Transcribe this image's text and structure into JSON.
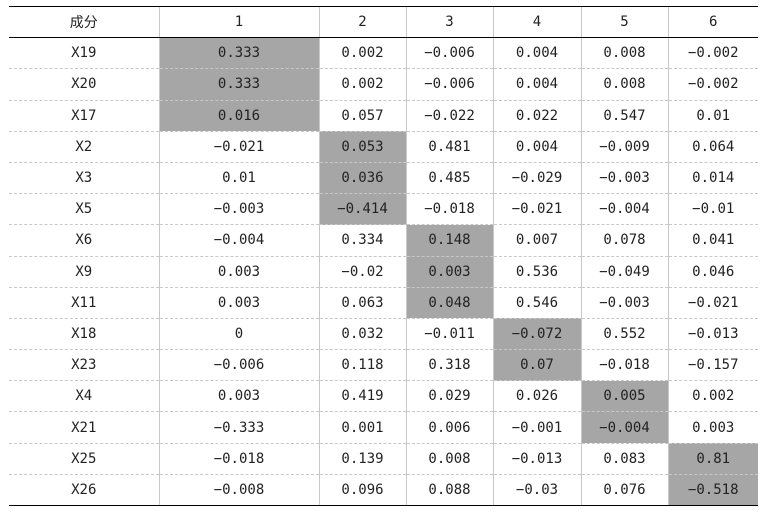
{
  "table": {
    "headers": [
      "成分",
      "1",
      "2",
      "3",
      "4",
      "5",
      "6"
    ],
    "highlight_color": "#a6a6a6",
    "rows": [
      {
        "label": "X19",
        "values": [
          "0.333",
          "0.002",
          "−0.006",
          "0.004",
          "0.008",
          "−0.002"
        ],
        "highlight": [
          0
        ]
      },
      {
        "label": "X20",
        "values": [
          "0.333",
          "0.002",
          "−0.006",
          "0.004",
          "0.008",
          "−0.002"
        ],
        "highlight": [
          0
        ]
      },
      {
        "label": "X17",
        "values": [
          "0.016",
          "0.057",
          "−0.022",
          "0.022",
          "0.547",
          "0.01"
        ],
        "highlight": [
          0
        ]
      },
      {
        "label": "X2",
        "values": [
          "−0.021",
          "0.053",
          "0.481",
          "0.004",
          "−0.009",
          "0.064"
        ],
        "highlight": [
          1
        ]
      },
      {
        "label": "X3",
        "values": [
          "0.01",
          "0.036",
          "0.485",
          "−0.029",
          "−0.003",
          "0.014"
        ],
        "highlight": [
          1
        ]
      },
      {
        "label": "X5",
        "values": [
          "−0.003",
          "−0.414",
          "−0.018",
          "−0.021",
          "−0.004",
          "−0.01"
        ],
        "highlight": [
          1
        ]
      },
      {
        "label": "X6",
        "values": [
          "−0.004",
          "0.334",
          "0.148",
          "0.007",
          "0.078",
          "0.041"
        ],
        "highlight": [
          2
        ]
      },
      {
        "label": "X9",
        "values": [
          "0.003",
          "−0.02",
          "0.003",
          "0.536",
          "−0.049",
          "0.046"
        ],
        "highlight": [
          2
        ]
      },
      {
        "label": "X11",
        "values": [
          "0.003",
          "0.063",
          "0.048",
          "0.546",
          "−0.003",
          "−0.021"
        ],
        "highlight": [
          2
        ]
      },
      {
        "label": "X18",
        "values": [
          "0",
          "0.032",
          "−0.011",
          "−0.072",
          "0.552",
          "−0.013"
        ],
        "highlight": [
          3
        ]
      },
      {
        "label": "X23",
        "values": [
          "−0.006",
          "0.118",
          "0.318",
          "0.07",
          "−0.018",
          "−0.157"
        ],
        "highlight": [
          3
        ]
      },
      {
        "label": "X4",
        "values": [
          "0.003",
          "0.419",
          "0.029",
          "0.026",
          "0.005",
          "0.002"
        ],
        "highlight": [
          4
        ]
      },
      {
        "label": "X21",
        "values": [
          "−0.333",
          "0.001",
          "0.006",
          "−0.001",
          "−0.004",
          "0.003"
        ],
        "highlight": [
          4
        ]
      },
      {
        "label": "X25",
        "values": [
          "−0.018",
          "0.139",
          "0.008",
          "−0.013",
          "0.083",
          "0.81"
        ],
        "highlight": [
          5
        ]
      },
      {
        "label": "X26",
        "values": [
          "−0.008",
          "0.096",
          "0.088",
          "−0.03",
          "0.076",
          "−0.518"
        ],
        "highlight": [
          5
        ]
      }
    ]
  }
}
